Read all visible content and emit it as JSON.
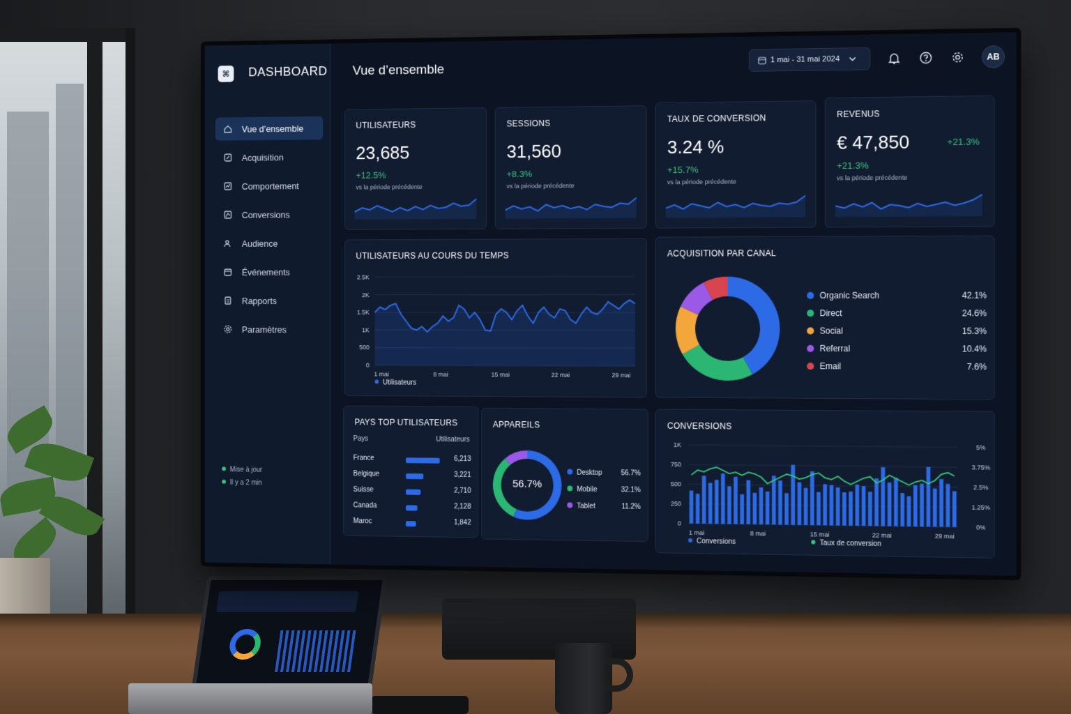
{
  "brand": "DASHBOARD",
  "page_title": "Vue d’ensemble",
  "colors": {
    "accent": "#2d6ae6",
    "positive": "#34c77b",
    "background": "#0c1322",
    "card": "#111c30"
  },
  "sidebar": {
    "items": [
      {
        "label": "Vue d’ensemble",
        "icon": "home-icon",
        "active": true
      },
      {
        "label": "Acquisition",
        "icon": "acquisition-icon",
        "active": false
      },
      {
        "label": "Comportement",
        "icon": "behavior-icon",
        "active": false
      },
      {
        "label": "Conversions",
        "icon": "conversions-icon",
        "active": false
      },
      {
        "label": "Audience",
        "icon": "audience-icon",
        "active": false
      },
      {
        "label": "Événements",
        "icon": "events-icon",
        "active": false
      },
      {
        "label": "Rapports",
        "icon": "reports-icon",
        "active": false
      },
      {
        "label": "Paramètres",
        "icon": "settings-icon",
        "active": false
      }
    ],
    "status_line1": "Mise à jour",
    "status_line2": "Il y a 2 min"
  },
  "topbar": {
    "date_range": "1 mai - 31 mai 2024",
    "icons": [
      "calendar-icon",
      "chevron-down-icon",
      "bell-icon",
      "help-icon",
      "gear-icon"
    ],
    "avatar_initials": "AB"
  },
  "kpis": [
    {
      "title": "UTILISATEURS",
      "value": "23,685",
      "delta": "+12.5%",
      "sub": "vs la période précédente"
    },
    {
      "title": "SESSIONS",
      "value": "31,560",
      "delta": "+8.3%",
      "sub": "vs la période précédente"
    },
    {
      "title": "TAUX DE CONVERSION",
      "value": "3.24 %",
      "delta": "+15.7%",
      "sub": "vs la période précédente"
    },
    {
      "title": "REVENUS",
      "value": "€ 47,850",
      "delta": "+21.3%",
      "delta_right": "+21.3%",
      "sub": "vs la période précédente"
    }
  ],
  "users_chart": {
    "title": "UTILISATEURS AU COURS DU TEMPS",
    "legend": "Utilisateurs"
  },
  "acquisition": {
    "title": "ACQUISITION PAR CANAL"
  },
  "countries": {
    "title": "PAYS TOP UTILISATEURS",
    "col_country": "Pays",
    "col_users": "Utilisateurs"
  },
  "devices": {
    "title": "APPAREILS",
    "center_label": "56.7%"
  },
  "conversions": {
    "title": "CONVERSIONS",
    "legend_bars": "Conversions",
    "legend_line": "Taux de conversion"
  },
  "chart_data": [
    {
      "type": "line",
      "title": "UTILISATEURS AU COURS DU TEMPS",
      "x_ticks": [
        "1 mai",
        "8 mai",
        "15 mai",
        "22 mai",
        "29 mai"
      ],
      "y_ticks": [
        "0",
        "500",
        "1K",
        "1.5K",
        "2K",
        "2.5K"
      ],
      "ylim": [
        0,
        2500
      ],
      "series": [
        {
          "name": "Utilisateurs",
          "color": "#2d6ae6",
          "values": [
            1500,
            1650,
            1580,
            1700,
            1750,
            1450,
            1250,
            1050,
            1000,
            1100,
            950,
            1100,
            1200,
            1400,
            1250,
            1350,
            1700,
            1600,
            1350,
            1500,
            1300,
            1000,
            980,
            1450,
            1600,
            1500,
            1300,
            1550,
            1700,
            1400,
            1200,
            1500,
            1650,
            1450,
            1350,
            1600,
            1550,
            1300,
            1200,
            1450,
            1650,
            1500,
            1450,
            1600,
            1800,
            1700,
            1600,
            1750,
            1850,
            1750
          ]
        }
      ],
      "grid": true
    },
    {
      "type": "pie",
      "title": "ACQUISITION PAR CANAL",
      "slices": [
        {
          "label": "Organic Search",
          "value": 42.1,
          "display": "42.1%",
          "color": "#2d6ae6"
        },
        {
          "label": "Direct",
          "value": 24.6,
          "display": "24.6%",
          "color": "#2bb673"
        },
        {
          "label": "Social",
          "value": 15.3,
          "display": "15.3%",
          "color": "#f2a63b"
        },
        {
          "label": "Referral",
          "value": 10.4,
          "display": "10.4%",
          "color": "#9b59e8"
        },
        {
          "label": "Email",
          "value": 7.6,
          "display": "7.6%",
          "color": "#d9454f"
        }
      ],
      "legend_placement": "right"
    },
    {
      "type": "bar",
      "title": "PAYS TOP UTILISATEURS",
      "categories": [
        "France",
        "Belgique",
        "Suisse",
        "Canada",
        "Maroc"
      ],
      "values": [
        6213,
        3221,
        2710,
        2128,
        1842
      ],
      "labels": [
        "6,213",
        "3,221",
        "2,710",
        "2,128",
        "1,842"
      ]
    },
    {
      "type": "pie",
      "title": "APPAREILS",
      "slices": [
        {
          "label": "Desktop",
          "value": 56.7,
          "display": "56.7%",
          "color": "#2d6ae6"
        },
        {
          "label": "Mobile",
          "value": 32.1,
          "display": "32.1%",
          "color": "#2bb673"
        },
        {
          "label": "Tablet",
          "value": 11.2,
          "display": "11.2%",
          "color": "#9b59e8"
        }
      ],
      "legend_placement": "right"
    },
    {
      "type": "bar",
      "title": "CONVERSIONS",
      "x_ticks": [
        "1 mai",
        "8 mai",
        "15 mai",
        "22 mai",
        "29 mai"
      ],
      "y_ticks_left": [
        "0",
        "250",
        "500",
        "750",
        "1K"
      ],
      "y_ticks_right": [
        "0%",
        "1.25%",
        "2.5%",
        "3.75%",
        "5%"
      ],
      "ylim_left": [
        0,
        1000
      ],
      "ylim_right": [
        0,
        5
      ],
      "series": [
        {
          "name": "Conversions",
          "type": "bar",
          "color": "#2d6ae6",
          "values": [
            420,
            380,
            610,
            520,
            560,
            640,
            480,
            600,
            380,
            560,
            400,
            470,
            420,
            620,
            560,
            400,
            760,
            540,
            470,
            680,
            420,
            520,
            510,
            480,
            420,
            430,
            520,
            500,
            430,
            600,
            740,
            550,
            610,
            420,
            380,
            520,
            540,
            750,
            480,
            600,
            540,
            450
          ]
        },
        {
          "name": "Taux de conversion",
          "type": "line",
          "color": "#34c77b",
          "values": [
            3.1,
            3.4,
            3.3,
            3.5,
            3.6,
            3.4,
            3.2,
            3.3,
            3.1,
            3.3,
            3.2,
            3.0,
            2.6,
            2.8,
            3.0,
            3.2,
            3.1,
            2.9,
            3.0,
            3.2,
            3.3,
            3.0,
            2.9,
            3.1,
            2.8,
            2.6,
            2.8,
            3.0,
            3.1,
            2.7,
            2.9,
            3.2,
            3.0,
            2.8,
            2.6,
            2.8,
            2.9,
            2.7,
            2.9,
            3.3,
            3.4,
            3.2
          ]
        }
      ],
      "grid": true
    }
  ]
}
